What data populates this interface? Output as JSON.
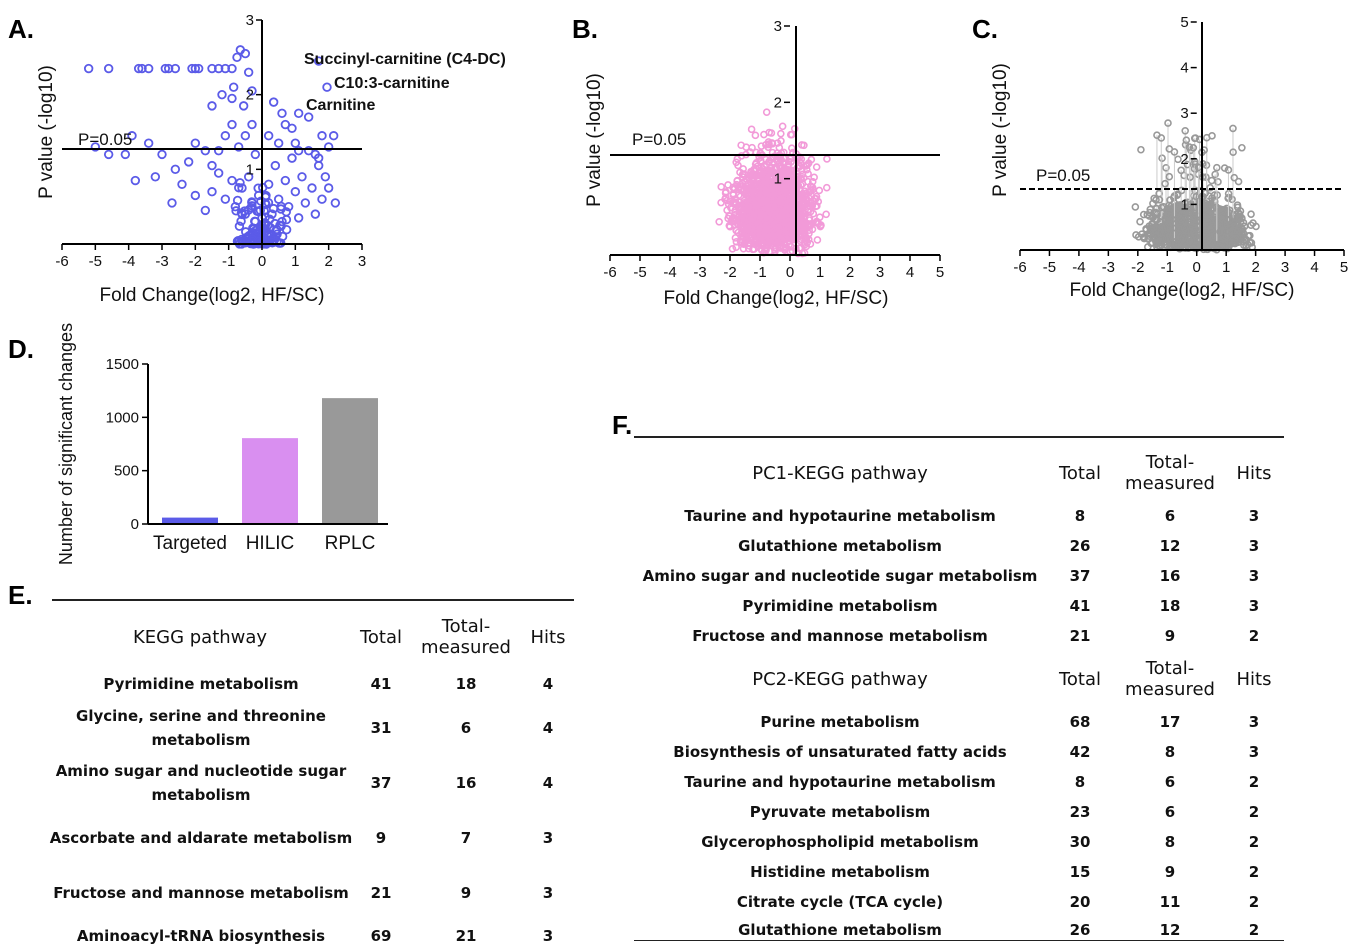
{
  "panels": {
    "A": {
      "letter": "A."
    },
    "B": {
      "letter": "B."
    },
    "C": {
      "letter": "C."
    },
    "D": {
      "letter": "D."
    },
    "E": {
      "letter": "E."
    },
    "F": {
      "letter": "F."
    }
  },
  "colors": {
    "targeted": "#5b5be8",
    "hilic": "#f29ad8",
    "rplc": "#999999",
    "hilic_bar": "#d98ff0"
  },
  "chart_data": [
    {
      "id": "A",
      "type": "scatter",
      "xlabel": "Fold Change(log2, HF/SC)",
      "ylabel": "P value (-log10)",
      "xlim": [
        -6,
        3
      ],
      "ylim": [
        0,
        3
      ],
      "xticks": [
        "-6",
        "-5",
        "-4",
        "-3",
        "-2",
        "-1",
        "0",
        "1",
        "2",
        "3"
      ],
      "yticks": [
        "1",
        "2",
        "3"
      ],
      "threshold": {
        "label": "P=0.05",
        "y": 1.3
      },
      "annotations": [
        {
          "text": "Succinyl-carnitine (C4-DC)",
          "x": 1.7,
          "y": 2.45
        },
        {
          "text": "C10:3-carnitine",
          "x": 1.95,
          "y": 2.1
        },
        {
          "text": "Carnitine",
          "x": 1.15,
          "y": 1.75
        }
      ],
      "points": [
        [
          -5.2,
          2.35
        ],
        [
          -4.6,
          2.35
        ],
        [
          -3.7,
          2.35
        ],
        [
          -3.6,
          2.35
        ],
        [
          -3.4,
          2.35
        ],
        [
          -2.9,
          2.35
        ],
        [
          -2.8,
          2.35
        ],
        [
          -2.6,
          2.35
        ],
        [
          -2.1,
          2.35
        ],
        [
          -2.0,
          2.35
        ],
        [
          -1.9,
          2.35
        ],
        [
          -1.5,
          2.35
        ],
        [
          -1.3,
          2.35
        ],
        [
          -1.1,
          2.35
        ],
        [
          -0.9,
          2.35
        ],
        [
          -0.85,
          2.1
        ],
        [
          -0.75,
          2.5
        ],
        [
          -0.65,
          2.6
        ],
        [
          -0.5,
          2.55
        ],
        [
          -0.4,
          2.3
        ],
        [
          -0.3,
          2.05
        ],
        [
          -0.55,
          1.85
        ],
        [
          -0.9,
          1.95
        ],
        [
          -1.2,
          2.0
        ],
        [
          -1.5,
          1.85
        ],
        [
          -4.1,
          1.2
        ],
        [
          -5.0,
          1.3
        ],
        [
          -4.6,
          1.2
        ],
        [
          -3.9,
          1.45
        ],
        [
          -3.4,
          1.35
        ],
        [
          -3.0,
          1.2
        ],
        [
          -2.6,
          1.0
        ],
        [
          -2.2,
          1.1
        ],
        [
          -2.0,
          1.35
        ],
        [
          -1.7,
          1.25
        ],
        [
          -1.5,
          1.05
        ],
        [
          -1.3,
          1.25
        ],
        [
          -1.1,
          1.45
        ],
        [
          -0.9,
          1.6
        ],
        [
          -0.7,
          1.3
        ],
        [
          -0.5,
          1.45
        ],
        [
          -0.3,
          1.6
        ],
        [
          -0.2,
          1.2
        ],
        [
          -3.8,
          0.85
        ],
        [
          -3.2,
          0.9
        ],
        [
          -2.7,
          0.55
        ],
        [
          -2.4,
          0.8
        ],
        [
          -2.0,
          0.65
        ],
        [
          -1.7,
          0.45
        ],
        [
          -1.5,
          0.7
        ],
        [
          -1.3,
          0.95
        ],
        [
          -1.1,
          0.6
        ],
        [
          -0.9,
          0.85
        ],
        [
          -0.8,
          0.5
        ],
        [
          -0.6,
          0.75
        ],
        [
          -0.5,
          0.4
        ],
        [
          -0.4,
          0.9
        ],
        [
          -0.3,
          0.55
        ],
        [
          -0.2,
          0.3
        ],
        [
          -0.1,
          0.65
        ],
        [
          0.0,
          0.35
        ],
        [
          0.1,
          0.55
        ],
        [
          0.2,
          0.8
        ],
        [
          0.3,
          0.4
        ],
        [
          0.4,
          1.05
        ],
        [
          0.5,
          0.6
        ],
        [
          0.6,
          0.3
        ],
        [
          0.7,
          0.85
        ],
        [
          0.8,
          0.5
        ],
        [
          0.9,
          1.15
        ],
        [
          1.0,
          0.7
        ],
        [
          1.1,
          0.35
        ],
        [
          1.2,
          0.9
        ],
        [
          1.3,
          0.55
        ],
        [
          1.4,
          1.25
        ],
        [
          1.5,
          0.75
        ],
        [
          1.6,
          0.4
        ],
        [
          1.7,
          1.05
        ],
        [
          1.8,
          0.6
        ],
        [
          1.9,
          0.9
        ],
        [
          2.0,
          0.75
        ],
        [
          2.2,
          0.55
        ],
        [
          0.2,
          1.45
        ],
        [
          0.5,
          1.35
        ],
        [
          0.7,
          1.6
        ],
        [
          0.9,
          1.55
        ],
        [
          1.0,
          1.35
        ],
        [
          0.35,
          1.9
        ],
        [
          0.6,
          1.75
        ],
        [
          1.1,
          1.25
        ],
        [
          1.6,
          1.2
        ],
        [
          1.8,
          1.45
        ],
        [
          1.4,
          1.7
        ],
        [
          2.15,
          1.45
        ],
        [
          1.7,
          1.15
        ],
        [
          2.0,
          1.3
        ],
        [
          -0.15,
          0.15
        ],
        [
          -0.1,
          0.1
        ],
        [
          0.05,
          0.05
        ],
        [
          0.15,
          0.12
        ],
        [
          -0.25,
          0.2
        ],
        [
          0.25,
          0.22
        ],
        [
          -0.05,
          0.45
        ],
        [
          0.1,
          0.25
        ]
      ],
      "highlight": [
        [
          1.7,
          2.45
        ],
        [
          1.95,
          2.1
        ],
        [
          1.1,
          1.75
        ]
      ]
    },
    {
      "id": "B",
      "type": "scatter",
      "xlabel": "Fold Change(log2, HF/SC)",
      "ylabel": "P value (-log10)",
      "xlim": [
        -6,
        5
      ],
      "ylim": [
        0,
        3
      ],
      "xticks": [
        "-6",
        "-5",
        "-4",
        "-3",
        "-2",
        "-1",
        "0",
        "1",
        "2",
        "3",
        "4",
        "5"
      ],
      "yticks": [
        "1",
        "2",
        "3"
      ],
      "threshold": {
        "label": "P=0.05",
        "y": 1.3
      }
    },
    {
      "id": "C",
      "type": "scatter",
      "xlabel": "Fold Change(log2, HF/SC)",
      "ylabel": "P value (-log10)",
      "xlim": [
        -6,
        5
      ],
      "ylim": [
        0,
        5
      ],
      "xticks": [
        "-6",
        "-5",
        "-4",
        "-3",
        "-2",
        "-1",
        "0",
        "1",
        "2",
        "3",
        "4",
        "5"
      ],
      "yticks": [
        "1",
        "2",
        "3",
        "4",
        "5"
      ],
      "threshold": {
        "label": "P=0.05",
        "y": 1.3
      }
    },
    {
      "id": "D",
      "type": "bar",
      "ylabel": "Number of significant changes",
      "categories": [
        "Targeted",
        "HILIC",
        "RPLC"
      ],
      "values": [
        60,
        805,
        1180
      ],
      "ylim": [
        0,
        1500
      ],
      "yticks": [
        "0",
        "500",
        "1000",
        "1500"
      ]
    }
  ],
  "table_E": {
    "headers": {
      "pathway": "KEGG pathway",
      "total": "Total",
      "measured": "Total-measured",
      "hits": "Hits"
    },
    "rows": [
      {
        "pathway": "Pyrimidine metabolism",
        "total": "41",
        "measured": "18",
        "hits": "4"
      },
      {
        "pathway": "Glycine, serine and threonine metabolism",
        "total": "31",
        "measured": "6",
        "hits": "4"
      },
      {
        "pathway": "Amino sugar and nucleotide sugar metabolism",
        "total": "37",
        "measured": "16",
        "hits": "4"
      },
      {
        "pathway": "Ascorbate and aldarate metabolism",
        "total": "9",
        "measured": "7",
        "hits": "3"
      },
      {
        "pathway": "Fructose and mannose metabolism",
        "total": "21",
        "measured": "9",
        "hits": "3"
      },
      {
        "pathway": "Aminoacyl-tRNA biosynthesis",
        "total": "69",
        "measured": "21",
        "hits": "3"
      }
    ]
  },
  "table_F": {
    "pc1_headers": {
      "pathway": "PC1-KEGG pathway",
      "total": "Total",
      "measured": "Total-measured",
      "hits": "Hits"
    },
    "pc1_rows": [
      {
        "pathway": "Taurine and hypotaurine metabolism",
        "total": "8",
        "measured": "6",
        "hits": "3"
      },
      {
        "pathway": "Glutathione metabolism",
        "total": "26",
        "measured": "12",
        "hits": "3"
      },
      {
        "pathway": "Amino sugar and nucleotide sugar metabolism",
        "total": "37",
        "measured": "16",
        "hits": "3"
      },
      {
        "pathway": "Pyrimidine metabolism",
        "total": "41",
        "measured": "18",
        "hits": "3"
      },
      {
        "pathway": "Fructose and mannose metabolism",
        "total": "21",
        "measured": "9",
        "hits": "2"
      }
    ],
    "pc2_headers": {
      "pathway": "PC2-KEGG pathway",
      "total": "Total",
      "measured": "Total-measured",
      "hits": "Hits"
    },
    "pc2_rows": [
      {
        "pathway": "Purine metabolism",
        "total": "68",
        "measured": "17",
        "hits": "3"
      },
      {
        "pathway": "Biosynthesis of unsaturated fatty acids",
        "total": "42",
        "measured": "8",
        "hits": "3"
      },
      {
        "pathway": "Taurine and hypotaurine metabolism",
        "total": "8",
        "measured": "6",
        "hits": "2"
      },
      {
        "pathway": "Pyruvate metabolism",
        "total": "23",
        "measured": "6",
        "hits": "2"
      },
      {
        "pathway": "Glycerophospholipid metabolism",
        "total": "30",
        "measured": "8",
        "hits": "2"
      },
      {
        "pathway": "Histidine metabolism",
        "total": "15",
        "measured": "9",
        "hits": "2"
      },
      {
        "pathway": "Citrate cycle (TCA cycle)",
        "total": "20",
        "measured": "11",
        "hits": "2"
      },
      {
        "pathway": "Glutathione metabolism",
        "total": "26",
        "measured": "12",
        "hits": "2"
      }
    ]
  }
}
